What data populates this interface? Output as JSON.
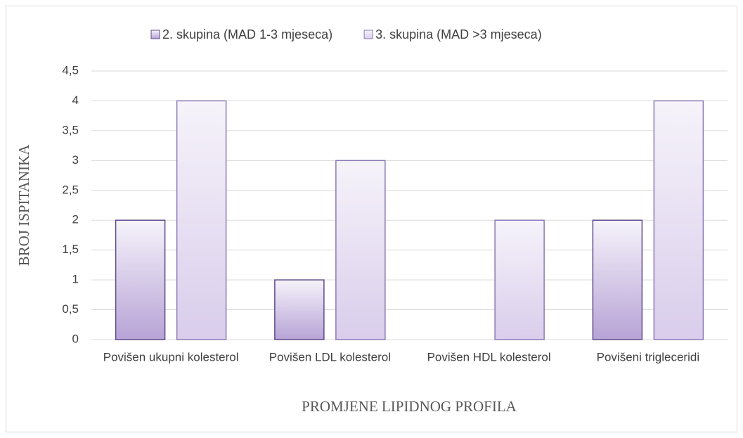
{
  "chart_data": {
    "type": "bar",
    "x_label": "PROMJENE LIPIDNOG PROFILA",
    "y_label": "BROJ ISPITANIKA",
    "categories": [
      "Povišen ukupni kolesterol",
      "Povišen LDL kolesterol",
      "Povišen HDL kolesterol",
      "Povišeni trigleceridi"
    ],
    "series": [
      {
        "name": "2. skupina (MAD 1-3 mjeseca)",
        "color": "#b7a3d6",
        "values": [
          2,
          1,
          0,
          2
        ]
      },
      {
        "name": "3. skupina (MAD >3 mjeseca)",
        "color": "#d9cdeb",
        "values": [
          4,
          3,
          2,
          4
        ]
      }
    ],
    "ylim": [
      0,
      4.5
    ],
    "yticks": [
      0,
      {
        "value": 0.5,
        "label": "0,5"
      },
      1,
      {
        "value": 1.5,
        "label": "1,5"
      },
      2,
      {
        "value": 2.5,
        "label": "2,5"
      },
      3,
      {
        "value": 3.5,
        "label": "3,5"
      },
      4,
      {
        "value": 4.5,
        "label": "4,5"
      }
    ],
    "grid": true,
    "legend": "top"
  }
}
